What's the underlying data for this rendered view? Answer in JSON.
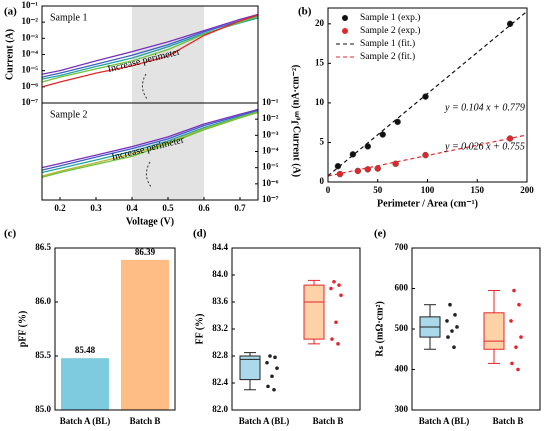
{
  "chart_data": [
    {
      "type": "line",
      "panel": "(a)",
      "ylabel": "Current (A)",
      "ylog": true,
      "xlim": [
        0.15,
        0.75
      ],
      "ylim": [
        1e-07,
        0.1
      ],
      "yticks": [
        {
          "value": 1e-07,
          "label": "10⁻⁷"
        },
        {
          "value": 1e-06,
          "label": "10⁻⁶"
        },
        {
          "value": 1e-05,
          "label": "10⁻⁵"
        },
        {
          "value": 0.0001,
          "label": "10⁻⁴"
        },
        {
          "value": 0.001,
          "label": "10⁻³"
        },
        {
          "value": 0.01,
          "label": "10⁻²"
        },
        {
          "value": 0.1,
          "label": "10⁻¹"
        }
      ],
      "shade": [
        0.4,
        0.6
      ],
      "annotations": [
        "Sample 1",
        "Increase perimeter"
      ],
      "x": [
        0.15,
        0.2,
        0.3,
        0.4,
        0.5,
        0.6,
        0.7,
        0.75
      ],
      "series": [
        {
          "color": "#7b2fbf",
          "values": [
            6e-06,
            1e-05,
            4e-05,
            0.00015,
            0.0006,
            0.003,
            0.015,
            0.03
          ]
        },
        {
          "color": "#3b5fc8",
          "values": [
            4e-06,
            7e-06,
            2.5e-05,
            9e-05,
            0.0004,
            0.0025,
            0.012,
            0.025
          ]
        },
        {
          "color": "#1fa3a3",
          "values": [
            3e-06,
            5e-06,
            1.8e-05,
            6e-05,
            0.0003,
            0.002,
            0.009,
            0.018
          ]
        },
        {
          "color": "#6cc23a",
          "values": [
            2e-06,
            4e-06,
            1.3e-05,
            4e-05,
            0.0002,
            0.0018,
            0.01,
            0.022
          ]
        },
        {
          "color": "#e3262a",
          "values": [
            1e-06,
            2e-06,
            7e-06,
            2e-05,
            8e-05,
            0.0015,
            0.012,
            0.028
          ]
        }
      ]
    },
    {
      "type": "line",
      "ylabel": "Current (A)",
      "xlabel": "Voltage (V)",
      "ylog": true,
      "y_axis_side": "right",
      "xlim": [
        0.15,
        0.75
      ],
      "ylim": [
        1e-07,
        0.1
      ],
      "xticks": [
        0.2,
        0.3,
        0.4,
        0.5,
        0.6,
        0.7
      ],
      "yticks": [
        {
          "value": 1e-07,
          "label": "10⁻⁷"
        },
        {
          "value": 1e-06,
          "label": "10⁻⁶"
        },
        {
          "value": 1e-05,
          "label": "10⁻⁵"
        },
        {
          "value": 0.0001,
          "label": "10⁻⁴"
        },
        {
          "value": 0.001,
          "label": "10⁻³"
        },
        {
          "value": 0.01,
          "label": "10⁻²"
        },
        {
          "value": 0.1,
          "label": "10⁻¹"
        }
      ],
      "shade": [
        0.4,
        0.6
      ],
      "annotations": [
        "Sample 2",
        "Increase perimeter"
      ],
      "x": [
        0.15,
        0.2,
        0.3,
        0.4,
        0.5,
        0.6,
        0.7,
        0.75
      ],
      "series": [
        {
          "color": "#7b2fbf",
          "values": [
            1e-05,
            1.8e-05,
            6e-05,
            0.0002,
            0.0008,
            0.005,
            0.02,
            0.04
          ]
        },
        {
          "color": "#3b5fc8",
          "values": [
            7e-06,
            1.3e-05,
            4.5e-05,
            0.00015,
            0.0006,
            0.004,
            0.017,
            0.035
          ]
        },
        {
          "color": "#1fa3a3",
          "values": [
            5e-06,
            9e-06,
            3e-05,
            0.0001,
            0.00045,
            0.003,
            0.014,
            0.03
          ]
        },
        {
          "color": "#b5b52c",
          "values": [
            3e-06,
            6e-06,
            2e-05,
            7e-05,
            0.00035,
            0.0025,
            0.013,
            0.028
          ]
        },
        {
          "color": "#6cc23a",
          "values": [
            2.5e-06,
            5e-06,
            1.6e-05,
            5e-05,
            0.0003,
            0.0022,
            0.012,
            0.026
          ]
        }
      ]
    },
    {
      "type": "scatter",
      "panel": "(b)",
      "xlabel": "Perimeter / Area (cm⁻¹)",
      "ylabel": "J₀ₘ (nA·cm⁻²)",
      "xlim": [
        0,
        200
      ],
      "ylim": [
        0,
        22
      ],
      "xticks": [
        0,
        50,
        100,
        150,
        200
      ],
      "yticks": [
        0,
        5,
        10,
        15,
        20
      ],
      "legend": "upper left",
      "annotations": [
        "y = 0.104 x + 0.779",
        "y = 0.026 x + 0.755"
      ],
      "series": [
        {
          "name": "Sample 1 (exp.)",
          "color": "#111111",
          "style": "marker",
          "x": [
            10,
            25,
            40,
            55,
            70,
            98,
            183
          ],
          "values": [
            2.0,
            3.5,
            4.5,
            6.0,
            7.6,
            10.8,
            20.0
          ]
        },
        {
          "name": "Sample 2 (exp.)",
          "color": "#e3262a",
          "style": "marker",
          "x": [
            12,
            30,
            40,
            50,
            68,
            98,
            183
          ],
          "values": [
            1.0,
            1.4,
            1.6,
            1.7,
            2.3,
            3.4,
            5.5
          ]
        },
        {
          "name": "Sample 1 (fit.)",
          "color": "#111111",
          "style": "dashed",
          "x": [
            0,
            200
          ],
          "values": [
            0.779,
            21.579
          ]
        },
        {
          "name": "Sample 2 (fit.)",
          "color": "#e3262a",
          "style": "dashed",
          "x": [
            0,
            200
          ],
          "values": [
            0.755,
            5.955
          ]
        }
      ]
    },
    {
      "type": "bar",
      "panel": "(c)",
      "ylabel": "pFF (%)",
      "categories": [
        "Batch A (BL)",
        "Batch B"
      ],
      "values": [
        85.48,
        86.39
      ],
      "colors": [
        "#7ecbdf",
        "#fdbd85"
      ],
      "ylim": [
        85,
        86.5
      ],
      "yticks": [
        {
          "value": 85,
          "label": "85.0"
        },
        85.5,
        {
          "value": 86,
          "label": "86.0"
        },
        86.5
      ]
    },
    {
      "type": "box",
      "panel": "(d)",
      "ylabel": "FF (%)",
      "categories": [
        "Batch A (BL)",
        "Batch B"
      ],
      "ylim": [
        82,
        84.4
      ],
      "yticks": [
        {
          "value": 82,
          "label": "82.0"
        },
        82.4,
        82.8,
        83.2,
        83.6,
        {
          "value": 84,
          "label": "84.0"
        },
        84.4
      ],
      "boxes": [
        {
          "min": 82.3,
          "q1": 82.45,
          "median": 82.75,
          "q3": 82.8,
          "max": 82.85,
          "fill": "#a9d9ea",
          "color": "#222222",
          "points": [
            82.8,
            82.78,
            82.7,
            82.62,
            82.5,
            82.35,
            82.3
          ]
        },
        {
          "min": 82.98,
          "q1": 83.05,
          "median": 83.6,
          "q3": 83.85,
          "max": 83.92,
          "fill": "#fdd2a6",
          "color": "#e3262a",
          "points": [
            83.9,
            83.85,
            83.8,
            83.7,
            83.3,
            83.05,
            82.98
          ]
        }
      ]
    },
    {
      "type": "box",
      "panel": "(e)",
      "ylabel": "Rₛ (mΩ·cm²)",
      "categories": [
        "Batch A (BL)",
        "Batch B"
      ],
      "ylim": [
        300,
        700
      ],
      "yticks": [
        300,
        400,
        500,
        600,
        700
      ],
      "boxes": [
        {
          "min": 450,
          "q1": 480,
          "median": 505,
          "q3": 530,
          "max": 560,
          "fill": "#a9d9ea",
          "color": "#222222",
          "points": [
            560,
            535,
            520,
            505,
            495,
            480,
            455
          ]
        },
        {
          "min": 415,
          "q1": 450,
          "median": 470,
          "q3": 540,
          "max": 595,
          "fill": "#fdd2a6",
          "color": "#e3262a",
          "points": [
            595,
            560,
            520,
            480,
            455,
            415,
            400
          ]
        }
      ]
    }
  ]
}
